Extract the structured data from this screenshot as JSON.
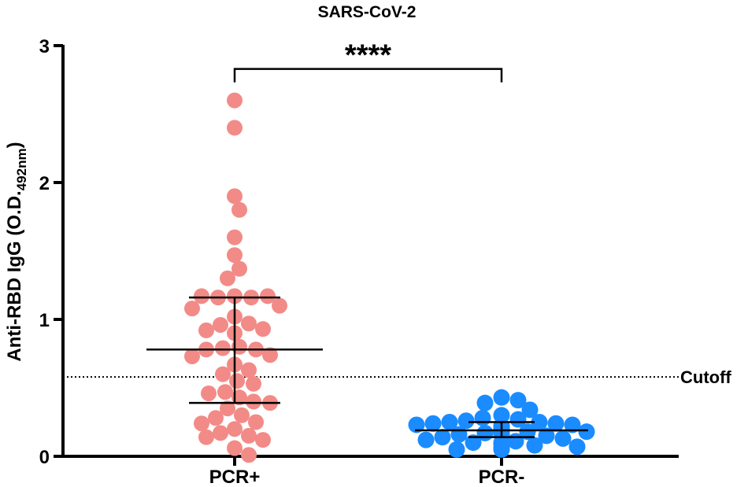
{
  "chart_data": {
    "type": "scatter",
    "title": "SARS-CoV-2",
    "ylabel": {
      "main": "Anti-RBD IgG (O.D.",
      "subscript": "492nm",
      "close": ")"
    },
    "xlabel": "",
    "ylim": [
      0,
      3
    ],
    "yticks": [
      "0",
      "1",
      "2",
      "3"
    ],
    "categories": [
      "PCR+",
      "PCR-"
    ],
    "colors": {
      "PCR+": "#f28b87",
      "PCR-": "#1a8cff",
      "axis": "#000000"
    },
    "series": [
      {
        "category": "PCR+",
        "values": [
          2.6,
          2.4,
          1.9,
          1.8,
          1.6,
          1.47,
          1.37,
          1.3,
          1.17,
          1.16,
          1.16,
          1.17,
          1.17,
          1.1,
          1.08,
          1.02,
          0.97,
          0.96,
          0.93,
          0.92,
          0.9,
          0.8,
          0.79,
          0.78,
          0.78,
          0.74,
          0.73,
          0.67,
          0.63,
          0.6,
          0.55,
          0.53,
          0.47,
          0.46,
          0.43,
          0.4,
          0.39,
          0.35,
          0.3,
          0.28,
          0.25,
          0.24,
          0.2,
          0.17,
          0.15,
          0.14,
          0.12,
          0.06,
          0.01
        ],
        "mean": 0.78,
        "sd_upper": 1.16,
        "sd_lower": 0.39
      },
      {
        "category": "PCR-",
        "values": [
          0.43,
          0.41,
          0.39,
          0.34,
          0.3,
          0.28,
          0.27,
          0.26,
          0.25,
          0.25,
          0.24,
          0.24,
          0.23,
          0.23,
          0.22,
          0.22,
          0.22,
          0.21,
          0.21,
          0.21,
          0.2,
          0.2,
          0.2,
          0.19,
          0.19,
          0.19,
          0.18,
          0.18,
          0.18,
          0.17,
          0.17,
          0.16,
          0.16,
          0.15,
          0.14,
          0.13,
          0.12,
          0.11,
          0.1,
          0.1,
          0.09,
          0.08,
          0.07,
          0.06,
          0.06,
          0.05,
          0.05
        ],
        "mean": 0.19,
        "sd_upper": 0.25,
        "sd_lower": 0.14
      }
    ],
    "cutoff": {
      "value": 0.58,
      "label": "Cutoff"
    },
    "significance": {
      "label": "****",
      "pairs": [
        "PCR+",
        "PCR-"
      ],
      "y": 2.83
    }
  }
}
